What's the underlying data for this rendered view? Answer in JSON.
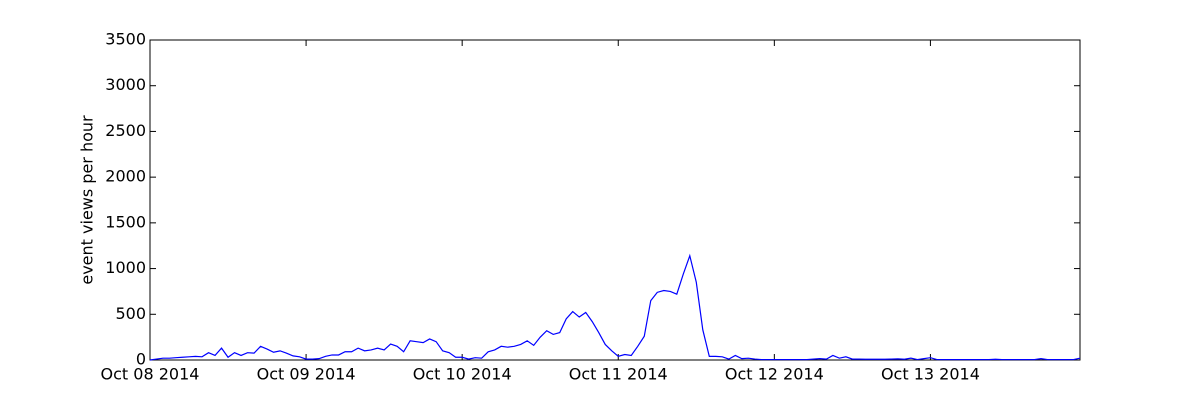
{
  "chart_data": {
    "type": "line",
    "ylabel": "event views per hour",
    "color": "#0000ff",
    "x": [
      0,
      1,
      2,
      3,
      4,
      5,
      6,
      7,
      8,
      9,
      10,
      11,
      12,
      13,
      14,
      15,
      16,
      17,
      18,
      19,
      20,
      21,
      22,
      23,
      24,
      25,
      26,
      27,
      28,
      29,
      30,
      31,
      32,
      33,
      34,
      35,
      36,
      37,
      38,
      39,
      40,
      41,
      42,
      43,
      44,
      45,
      46,
      47,
      48,
      49,
      50,
      51,
      52,
      53,
      54,
      55,
      56,
      57,
      58,
      59,
      60,
      61,
      62,
      63,
      64,
      65,
      66,
      67,
      68,
      69,
      70,
      71,
      72,
      73,
      74,
      75,
      76,
      77,
      78,
      79,
      80,
      81,
      82,
      83,
      84,
      85,
      86,
      87,
      88,
      89,
      90,
      91,
      92,
      93,
      94,
      95,
      96,
      97,
      98,
      99,
      100,
      101,
      102,
      103,
      104,
      105,
      106,
      107,
      108,
      109,
      110,
      111,
      112,
      113,
      114,
      115,
      116,
      117,
      118,
      119,
      120,
      121,
      122,
      123,
      124,
      125,
      126,
      127,
      128,
      129,
      130,
      131,
      132,
      133,
      134,
      135,
      136,
      137,
      138,
      139,
      140,
      141,
      142,
      143
    ],
    "values": [
      0,
      10,
      20,
      20,
      25,
      30,
      35,
      40,
      35,
      80,
      50,
      130,
      30,
      80,
      50,
      80,
      75,
      150,
      120,
      85,
      100,
      75,
      45,
      35,
      10,
      10,
      15,
      40,
      55,
      55,
      90,
      90,
      130,
      100,
      110,
      130,
      110,
      175,
      150,
      90,
      210,
      200,
      190,
      230,
      200,
      100,
      80,
      30,
      30,
      10,
      25,
      20,
      90,
      110,
      150,
      140,
      150,
      170,
      210,
      160,
      250,
      320,
      280,
      300,
      450,
      530,
      470,
      520,
      420,
      300,
      170,
      100,
      40,
      60,
      50,
      150,
      260,
      650,
      740,
      760,
      750,
      720,
      940,
      1140,
      850,
      330,
      40,
      40,
      35,
      10,
      50,
      15,
      20,
      10,
      5,
      5,
      5,
      5,
      5,
      5,
      5,
      5,
      10,
      15,
      10,
      50,
      20,
      35,
      10,
      10,
      8,
      8,
      8,
      8,
      10,
      12,
      8,
      20,
      5,
      15,
      25,
      5,
      5,
      5,
      5,
      5,
      5,
      5,
      5,
      5,
      8,
      5,
      5,
      5,
      5,
      5,
      5,
      15,
      5,
      5,
      5,
      5,
      5,
      20
    ],
    "xlim": [
      0,
      143
    ],
    "xticks": [
      {
        "value": 0,
        "label": "Oct 08 2014"
      },
      {
        "value": 24,
        "label": "Oct 09 2014"
      },
      {
        "value": 48,
        "label": "Oct 10 2014"
      },
      {
        "value": 72,
        "label": "Oct 11 2014"
      },
      {
        "value": 96,
        "label": "Oct 12 2014"
      },
      {
        "value": 120,
        "label": "Oct 13 2014"
      }
    ],
    "ylim": [
      0,
      3500
    ],
    "yticks": [
      0,
      500,
      1000,
      1500,
      2000,
      2500,
      3000,
      3500
    ],
    "grid": false
  }
}
